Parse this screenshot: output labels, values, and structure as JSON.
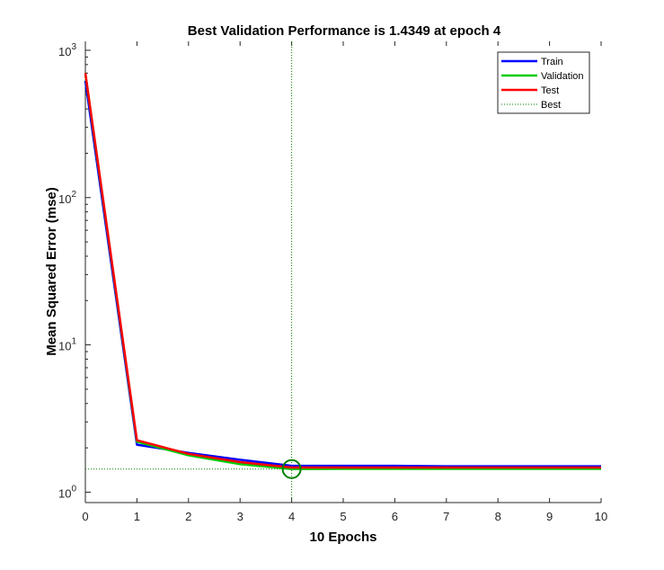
{
  "chart_data": {
    "type": "line",
    "title": "Best Validation Performance is 1.4349 at epoch 4",
    "xlabel": "10 Epochs",
    "ylabel": "Mean Squared Error  (mse)",
    "xlim": [
      0,
      10
    ],
    "ylim": [
      0.85,
      1150
    ],
    "yscale": "log",
    "xticks": [
      0,
      1,
      2,
      3,
      4,
      5,
      6,
      7,
      8,
      9,
      10
    ],
    "yticks": [
      1,
      10,
      100,
      1000
    ],
    "ytick_labels": [
      {
        "base": "10",
        "exp": "0"
      },
      {
        "base": "10",
        "exp": "1"
      },
      {
        "base": "10",
        "exp": "2"
      },
      {
        "base": "10",
        "exp": "3"
      }
    ],
    "grid": false,
    "legend_position": "top-right",
    "x": [
      0,
      1,
      2,
      3,
      4,
      5,
      6,
      7,
      8,
      9,
      10
    ],
    "series": [
      {
        "name": "Train",
        "color": "#0000ff",
        "style": "solid",
        "values": [
          620,
          2.1,
          1.85,
          1.66,
          1.51,
          1.51,
          1.51,
          1.5,
          1.5,
          1.5,
          1.5
        ]
      },
      {
        "name": "Validation",
        "color": "#00cc00",
        "style": "solid",
        "values": [
          690,
          2.2,
          1.78,
          1.55,
          1.4349,
          1.44,
          1.44,
          1.44,
          1.44,
          1.44,
          1.44
        ]
      },
      {
        "name": "Test",
        "color": "#ff0000",
        "style": "solid",
        "values": [
          700,
          2.25,
          1.82,
          1.6,
          1.47,
          1.47,
          1.47,
          1.47,
          1.47,
          1.47,
          1.47
        ]
      }
    ],
    "best": {
      "name": "Best",
      "color": "#008000",
      "style": "dotted",
      "epoch": 4,
      "value": 1.4349
    }
  }
}
